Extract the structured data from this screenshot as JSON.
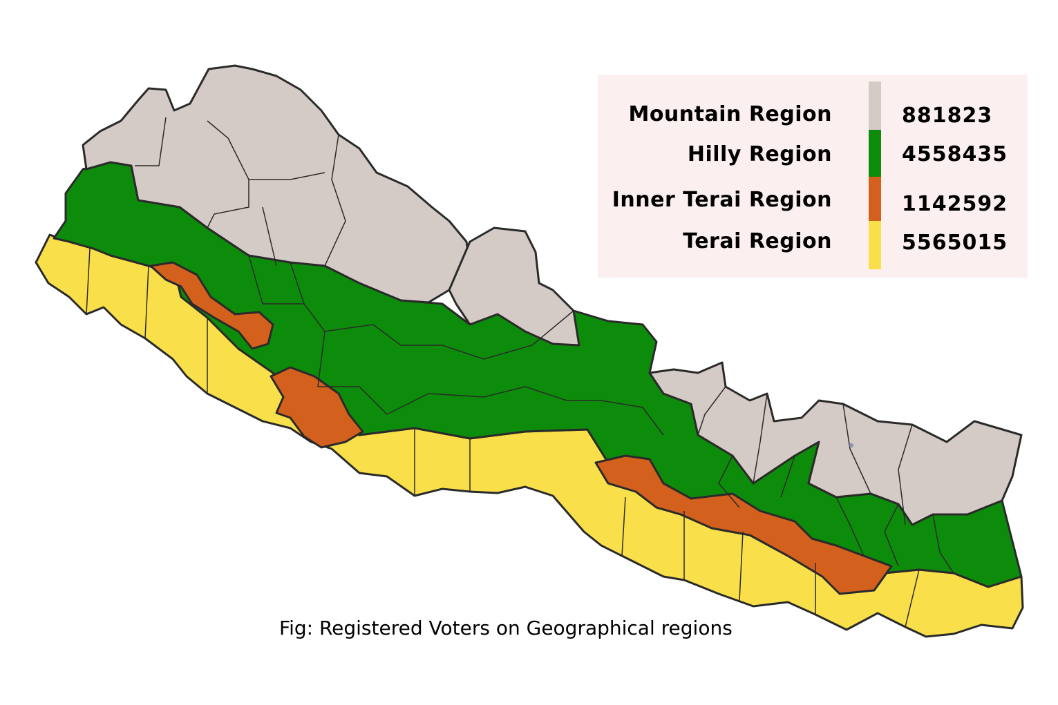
{
  "caption": "Fig: Registered Voters on Geographical regions",
  "legend": [
    {
      "name": "Mountain Region",
      "value": "881823",
      "color": "#d5cbc6"
    },
    {
      "name": "Hilly Region",
      "value": "4558435",
      "color": "#0d8c0b"
    },
    {
      "name": "Inner Terai Region",
      "value": "1142592",
      "color": "#d4601e"
    },
    {
      "name": "Terai Region",
      "value": "5565015",
      "color": "#f9e04b"
    }
  ],
  "colors": {
    "border": "#2a2a2a",
    "legend_background": "#fbefef"
  }
}
